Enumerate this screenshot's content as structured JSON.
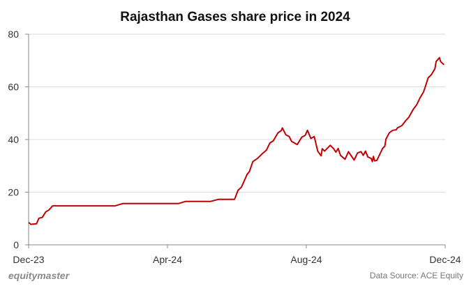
{
  "chart_data": {
    "type": "line",
    "title": "Rajasthan Gases share price in 2024",
    "xlabel": "",
    "ylabel": "",
    "ylim": [
      0,
      80
    ],
    "yticks": [
      0,
      20,
      40,
      60,
      80
    ],
    "xlim": [
      "2023-12-01",
      "2024-12-01"
    ],
    "xticks": [
      {
        "date": "2023-12-01",
        "label": "Dec-23"
      },
      {
        "date": "2024-04-01",
        "label": "Apr-24"
      },
      {
        "date": "2024-08-01",
        "label": "Aug-24"
      },
      {
        "date": "2024-12-01",
        "label": "Dec-24"
      }
    ],
    "grid": "horizontal",
    "legend": "none",
    "line_color": "#c00000",
    "series": [
      {
        "x": [
          "2023-12-01",
          "2023-12-03",
          "2023-12-08",
          "2023-12-10",
          "2023-12-13",
          "2023-12-16",
          "2023-12-19",
          "2023-12-22",
          "2024-02-15",
          "2024-02-22",
          "2024-04-11",
          "2024-04-17",
          "2024-05-09",
          "2024-05-16",
          "2024-05-30",
          "2024-06-02",
          "2024-06-05",
          "2024-06-10",
          "2024-06-12",
          "2024-06-15",
          "2024-06-19",
          "2024-06-23",
          "2024-06-27",
          "2024-06-30",
          "2024-07-03",
          "2024-07-07",
          "2024-07-10",
          "2024-07-11",
          "2024-07-14",
          "2024-07-17",
          "2024-07-19",
          "2024-07-24",
          "2024-07-28",
          "2024-07-31",
          "2024-08-02",
          "2024-08-05",
          "2024-08-08",
          "2024-08-11",
          "2024-08-14",
          "2024-08-15",
          "2024-08-17",
          "2024-08-22",
          "2024-08-25",
          "2024-08-27",
          "2024-08-29",
          "2024-08-31",
          "2024-09-04",
          "2024-09-07",
          "2024-09-12",
          "2024-09-15",
          "2024-09-18",
          "2024-09-20",
          "2024-09-22",
          "2024-09-24",
          "2024-09-27",
          "2024-09-28",
          "2024-09-29",
          "2024-09-30",
          "2024-10-02",
          "2024-10-07",
          "2024-10-09",
          "2024-10-10",
          "2024-10-13",
          "2024-10-16",
          "2024-10-19",
          "2024-10-20",
          "2024-10-24",
          "2024-10-27",
          "2024-10-30",
          "2024-11-03",
          "2024-11-06",
          "2024-11-09",
          "2024-11-12",
          "2024-11-14",
          "2024-11-16",
          "2024-11-19",
          "2024-11-22",
          "2024-11-23",
          "2024-11-26",
          "2024-11-27",
          "2024-11-30"
        ],
        "y": [
          8.5,
          7.8,
          8.0,
          10.1,
          10.4,
          12.5,
          13.3,
          14.8,
          14.8,
          15.7,
          15.7,
          16.5,
          16.5,
          17.3,
          17.3,
          20.7,
          21.9,
          26.8,
          27.8,
          31.6,
          32.8,
          34.5,
          36.0,
          38.7,
          39.5,
          42.5,
          43.4,
          44.4,
          41.8,
          41.1,
          39.3,
          38.1,
          40.9,
          41.6,
          43.5,
          40.4,
          41.1,
          35.6,
          33.8,
          36.5,
          35.6,
          37.8,
          36.5,
          35.2,
          36.6,
          34.0,
          32.5,
          35.4,
          32.2,
          34.9,
          35.4,
          34.0,
          35.6,
          33.4,
          32.8,
          31.6,
          33.6,
          31.9,
          32.1,
          36.6,
          37.5,
          40.2,
          42.6,
          43.5,
          43.7,
          44.4,
          45.3,
          47.0,
          48.4,
          51.5,
          53.2,
          55.9,
          58.1,
          60.7,
          63.4,
          64.7,
          66.9,
          69.6,
          71.1,
          69.6,
          68.4
        ]
      }
    ]
  },
  "footer": {
    "brand": "equitymaster",
    "source": "Data Source: ACE Equity"
  }
}
